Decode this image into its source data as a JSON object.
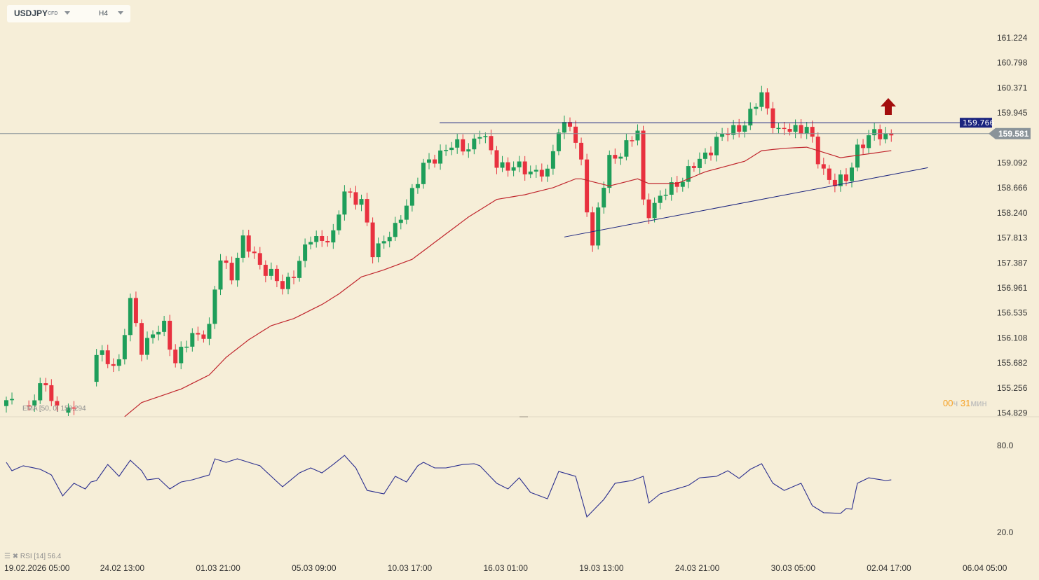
{
  "symbol": {
    "name": "USDJPY",
    "type": "CFD",
    "timeframe": "H4"
  },
  "colors": {
    "background": "#f6eed8",
    "up": "#1e9e5a",
    "down": "#e8313f",
    "ema": "#c0262d",
    "trend": "#1a237e",
    "rsi": "#2b2f8f",
    "current": "#8a9399"
  },
  "price_axis": [
    "161.224",
    "160.798",
    "160.371",
    "159.945",
    "159.092",
    "158.666",
    "158.240",
    "157.813",
    "157.387",
    "156.961",
    "156.535",
    "156.108",
    "155.682",
    "155.256",
    "154.829"
  ],
  "level_label": "159.766",
  "current_price": "159.581",
  "timer": {
    "h": "00",
    "h_unit": "ч",
    "m": "31",
    "m_unit": "мин"
  },
  "ema_legend": "EMA [50, 0] 159.294",
  "rsi_legend": "RSI [14] 56.4",
  "rsi_axis": [
    "80.0",
    "20.0"
  ],
  "time_axis": [
    "19.02.2026 05:00",
    "24.02 13:00",
    "01.03 21:00",
    "05.03 09:00",
    "10.03 17:00",
    "16.03 01:00",
    "19.03 13:00",
    "24.03 21:00",
    "30.03 05:00",
    "02.04 17:00",
    "06.04 05:00"
  ],
  "chart_data": {
    "type": "candlestick",
    "price_range": [
      154.829,
      161.224
    ],
    "close_keypoints": [
      [
        0,
        154.99
      ],
      [
        4,
        154.93
      ],
      [
        7,
        155.35
      ],
      [
        9,
        154.88
      ],
      [
        14,
        154.82
      ],
      [
        16,
        155.83
      ],
      [
        20,
        155.65
      ],
      [
        22,
        156.72
      ],
      [
        24,
        155.95
      ],
      [
        28,
        156.31
      ],
      [
        30,
        155.71
      ],
      [
        33,
        156.13
      ],
      [
        36,
        156.25
      ],
      [
        37,
        156.9
      ],
      [
        38,
        157.44
      ],
      [
        40,
        157.2
      ],
      [
        42,
        157.74
      ],
      [
        46,
        157.26
      ],
      [
        49,
        156.96
      ],
      [
        52,
        157.38
      ],
      [
        54,
        157.8
      ],
      [
        58,
        157.8
      ],
      [
        60,
        158.63
      ],
      [
        63,
        158.4
      ],
      [
        65,
        157.56
      ],
      [
        67,
        157.8
      ],
      [
        69,
        157.92
      ],
      [
        72,
        158.63
      ],
      [
        74,
        158.99
      ],
      [
        78,
        159.35
      ],
      [
        82,
        159.35
      ],
      [
        84,
        159.59
      ],
      [
        87,
        159.11
      ],
      [
        89,
        158.99
      ],
      [
        92,
        158.99
      ],
      [
        96,
        158.87
      ],
      [
        98,
        159.71
      ],
      [
        100,
        159.73
      ],
      [
        102,
        159.05
      ],
      [
        104,
        157.68
      ],
      [
        105,
        158.28
      ],
      [
        107,
        159.11
      ],
      [
        109,
        159.29
      ],
      [
        112,
        159.59
      ],
      [
        113,
        158.4
      ],
      [
        114,
        158.28
      ],
      [
        117,
        158.57
      ],
      [
        119,
        158.75
      ],
      [
        123,
        159.11
      ],
      [
        126,
        159.47
      ],
      [
        128,
        159.59
      ],
      [
        131,
        159.77
      ],
      [
        132,
        159.89
      ],
      [
        134,
        160.25
      ],
      [
        135,
        160.01
      ],
      [
        137,
        159.59
      ],
      [
        139,
        159.65
      ],
      [
        142,
        159.71
      ],
      [
        144,
        159.11
      ],
      [
        146,
        158.81
      ],
      [
        149,
        158.75
      ],
      [
        151,
        159.35
      ],
      [
        153,
        159.53
      ],
      [
        157,
        159.58
      ]
    ],
    "ema50_keypoints": [
      [
        21,
        154.76
      ],
      [
        24,
        155.0
      ],
      [
        31,
        155.23
      ],
      [
        36,
        155.47
      ],
      [
        39,
        155.77
      ],
      [
        43,
        156.07
      ],
      [
        47,
        156.31
      ],
      [
        51,
        156.43
      ],
      [
        56,
        156.67
      ],
      [
        59,
        156.85
      ],
      [
        63,
        157.14
      ],
      [
        67,
        157.26
      ],
      [
        72,
        157.44
      ],
      [
        77,
        157.8
      ],
      [
        82,
        158.16
      ],
      [
        87,
        158.46
      ],
      [
        92,
        158.54
      ],
      [
        97,
        158.66
      ],
      [
        101,
        158.81
      ],
      [
        102,
        158.81
      ],
      [
        107,
        158.69
      ],
      [
        112,
        158.81
      ],
      [
        114,
        158.73
      ],
      [
        119,
        158.73
      ],
      [
        124,
        158.93
      ],
      [
        131,
        159.11
      ],
      [
        134,
        159.29
      ],
      [
        138,
        159.33
      ],
      [
        142,
        159.35
      ],
      [
        144,
        159.29
      ],
      [
        148,
        159.17
      ],
      [
        151,
        159.21
      ],
      [
        157,
        159.29
      ]
    ],
    "resistance": {
      "price": 159.766,
      "from_index": 77,
      "to_index": 170
    },
    "support": {
      "from": [
        100,
        157.82
      ],
      "to": [
        165,
        159.0
      ]
    },
    "rsi_keypoints": [
      [
        0,
        68.4
      ],
      [
        1,
        62.6
      ],
      [
        3,
        66.0
      ],
      [
        6,
        63.6
      ],
      [
        8,
        59.7
      ],
      [
        10,
        45.2
      ],
      [
        12,
        53.9
      ],
      [
        14,
        50.0
      ],
      [
        15,
        54.8
      ],
      [
        16,
        55.8
      ],
      [
        18,
        66.9
      ],
      [
        20,
        58.7
      ],
      [
        22,
        69.8
      ],
      [
        24,
        62.6
      ],
      [
        25,
        56.3
      ],
      [
        27,
        57.3
      ],
      [
        29,
        50.0
      ],
      [
        31,
        54.8
      ],
      [
        33,
        56.3
      ],
      [
        36,
        59.7
      ],
      [
        37,
        70.8
      ],
      [
        39,
        68.4
      ],
      [
        41,
        70.8
      ],
      [
        43,
        68.4
      ],
      [
        45,
        66.0
      ],
      [
        47,
        58.7
      ],
      [
        49,
        51.5
      ],
      [
        52,
        61.1
      ],
      [
        54,
        64.5
      ],
      [
        56,
        61.1
      ],
      [
        58,
        66.9
      ],
      [
        60,
        73.2
      ],
      [
        62,
        64.5
      ],
      [
        64,
        49.0
      ],
      [
        67,
        46.6
      ],
      [
        69,
        58.7
      ],
      [
        71,
        54.8
      ],
      [
        73,
        66.0
      ],
      [
        74,
        68.4
      ],
      [
        76,
        64.5
      ],
      [
        78,
        64.5
      ],
      [
        81,
        66.9
      ],
      [
        83,
        67.4
      ],
      [
        84,
        66.0
      ],
      [
        87,
        53.9
      ],
      [
        89,
        50.0
      ],
      [
        91,
        57.7
      ],
      [
        93,
        47.6
      ],
      [
        96,
        43.2
      ],
      [
        98,
        62.1
      ],
      [
        101,
        58.7
      ],
      [
        103,
        30.7
      ],
      [
        106,
        42.7
      ],
      [
        108,
        53.9
      ],
      [
        111,
        55.8
      ],
      [
        113,
        58.7
      ],
      [
        114,
        40.3
      ],
      [
        116,
        46.6
      ],
      [
        118,
        49.0
      ],
      [
        121,
        52.4
      ],
      [
        123,
        57.7
      ],
      [
        126,
        58.7
      ],
      [
        128,
        62.6
      ],
      [
        130,
        57.3
      ],
      [
        132,
        63.6
      ],
      [
        134,
        67.4
      ],
      [
        136,
        53.9
      ],
      [
        138,
        49.0
      ],
      [
        141,
        53.9
      ],
      [
        143,
        38.4
      ],
      [
        145,
        33.6
      ],
      [
        148,
        33.1
      ],
      [
        149,
        36.5
      ],
      [
        150,
        36.0
      ],
      [
        151,
        53.9
      ],
      [
        153,
        57.7
      ],
      [
        156,
        55.8
      ],
      [
        157,
        56.3
      ]
    ],
    "rsi_range": [
      20,
      80
    ]
  }
}
